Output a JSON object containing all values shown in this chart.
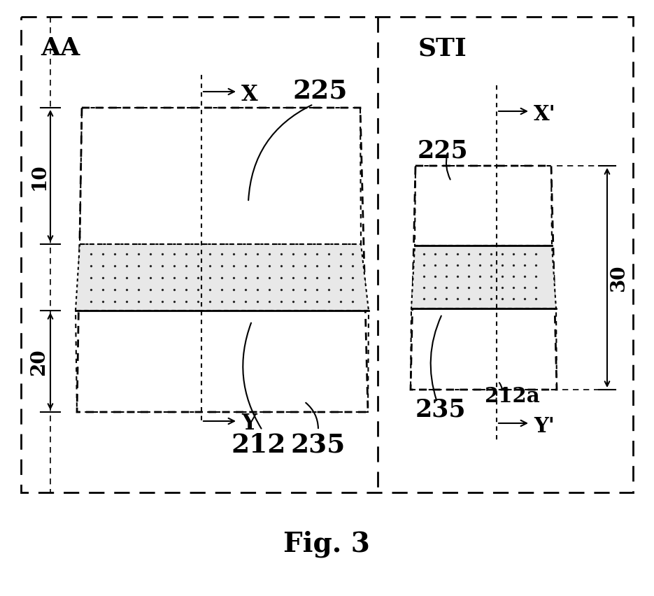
{
  "fig_label": "Fig. 3",
  "bg_color": "#ffffff",
  "label_AA": "AA",
  "label_STI": "STI",
  "label_225_left": "225",
  "label_212_left": "212",
  "label_235_left": "235",
  "label_10": "10",
  "label_20": "20",
  "label_30": "30",
  "label_225_right": "225",
  "label_212a": "212a",
  "label_235_right": "235",
  "label_X": "X",
  "label_Y": "Y",
  "label_Xprime": "X'",
  "label_Yprime": "Y'"
}
